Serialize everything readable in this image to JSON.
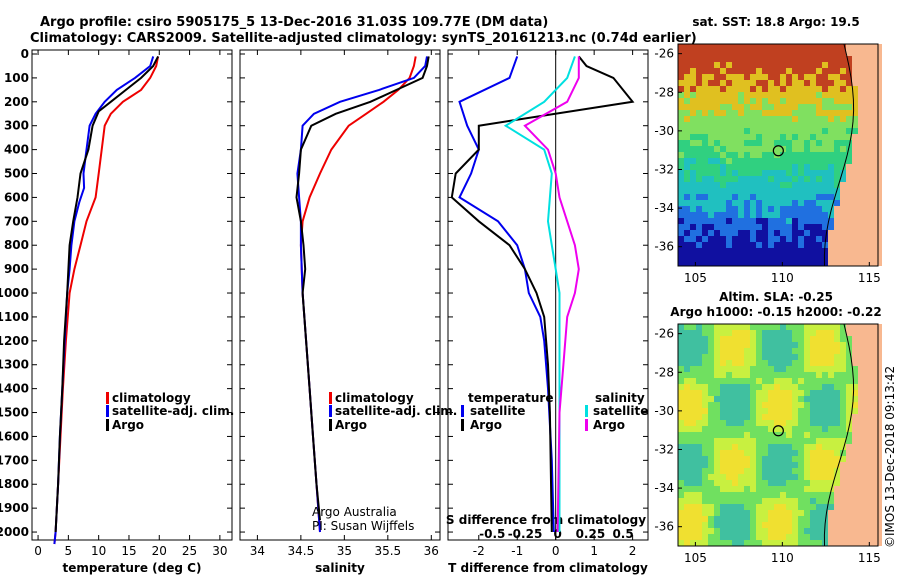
{
  "header": {
    "line1": "Argo profile: csiro 5905175_5 13-Dec-2016 31.03S 109.77E (DM data)",
    "line2": "Climatology: CARS2009. Satellite-adjusted climatology: synTS_20161213.nc (0.74d earlier)"
  },
  "colors": {
    "climatology": "#ee0000",
    "satellite": "#0000ee",
    "argo": "#000000",
    "sal_sat": "#00e0e0",
    "sal_argo": "#ee00ee"
  },
  "footer": {
    "credit1": "Argo Australia",
    "credit2": "PI: Susan Wijffels",
    "stamp": "©IMOS 13-Dec-2018 09:13:42"
  },
  "chart_data": [
    {
      "type": "line",
      "xlabel": "temperature (deg C)",
      "ylabel": "",
      "xlim": [
        -1,
        32
      ],
      "ylim": [
        2050,
        0
      ],
      "xticks": [
        "0",
        "5",
        "10",
        "15",
        "20",
        "25",
        "30"
      ],
      "yticks": [
        "0",
        "100",
        "200",
        "300",
        "400",
        "500",
        "600",
        "700",
        "800",
        "900",
        "1000",
        "1100",
        "1200",
        "1300",
        "1400",
        "1500",
        "1600",
        "1700",
        "1800",
        "1900",
        "2000"
      ],
      "legend": [
        "climatology",
        "satellite-adj. clim.",
        "Argo"
      ],
      "series": [
        {
          "name": "climatology",
          "points": [
            [
              19.8,
              10
            ],
            [
              19.5,
              50
            ],
            [
              18.5,
              100
            ],
            [
              17,
              150
            ],
            [
              14,
              200
            ],
            [
              12,
              250
            ],
            [
              11,
              300
            ],
            [
              10.5,
              400
            ],
            [
              10,
              500
            ],
            [
              9.5,
              600
            ],
            [
              8,
              700
            ],
            [
              7,
              800
            ],
            [
              6,
              900
            ],
            [
              5.2,
              1000
            ],
            [
              4.6,
              1200
            ],
            [
              4.1,
              1400
            ],
            [
              3.7,
              1600
            ],
            [
              3.3,
              1800
            ],
            [
              2.9,
              2000
            ],
            [
              2.7,
              2050
            ]
          ]
        },
        {
          "name": "satellite-adj. clim.",
          "points": [
            [
              19,
              10
            ],
            [
              18.5,
              50
            ],
            [
              16,
              100
            ],
            [
              13,
              150
            ],
            [
              11,
              200
            ],
            [
              9.5,
              250
            ],
            [
              8.5,
              300
            ],
            [
              8,
              400
            ],
            [
              7.5,
              500
            ],
            [
              7.6,
              560
            ],
            [
              6.8,
              620
            ],
            [
              6,
              700
            ],
            [
              5.5,
              800
            ],
            [
              5.2,
              900
            ],
            [
              4.8,
              1000
            ],
            [
              4.4,
              1200
            ],
            [
              4,
              1400
            ],
            [
              3.6,
              1600
            ],
            [
              3.3,
              1800
            ],
            [
              2.9,
              2000
            ],
            [
              2.7,
              2050
            ]
          ]
        },
        {
          "name": "Argo",
          "points": [
            [
              19.8,
              10
            ],
            [
              19,
              50
            ],
            [
              17,
              100
            ],
            [
              14.5,
              150
            ],
            [
              12,
              200
            ],
            [
              10,
              240
            ],
            [
              9,
              300
            ],
            [
              8.3,
              400
            ],
            [
              7,
              500
            ],
            [
              6.5,
              600
            ],
            [
              5.8,
              700
            ],
            [
              5.2,
              800
            ],
            [
              5,
              900
            ],
            [
              4.8,
              1000
            ],
            [
              4.3,
              1200
            ],
            [
              4,
              1400
            ],
            [
              3.6,
              1600
            ],
            [
              3.3,
              1800
            ],
            [
              2.9,
              2000
            ]
          ]
        }
      ]
    },
    {
      "type": "line",
      "xlabel": "salinity",
      "ylabel": "",
      "xlim": [
        33.8,
        36.1
      ],
      "ylim": [
        2050,
        0
      ],
      "xticks": [
        "34",
        "34.5",
        "35",
        "35.5",
        "36"
      ],
      "legend": [
        "climatology",
        "satellite-adj. clim.",
        "Argo"
      ],
      "series": [
        {
          "name": "climatology",
          "points": [
            [
              35.82,
              10
            ],
            [
              35.8,
              50
            ],
            [
              35.75,
              100
            ],
            [
              35.62,
              150
            ],
            [
              35.45,
              200
            ],
            [
              35.25,
              250
            ],
            [
              35.05,
              300
            ],
            [
              34.85,
              400
            ],
            [
              34.72,
              500
            ],
            [
              34.6,
              600
            ],
            [
              34.52,
              700
            ],
            [
              34.5,
              800
            ],
            [
              34.52,
              1000
            ],
            [
              34.56,
              1200
            ],
            [
              34.6,
              1400
            ],
            [
              34.64,
              1600
            ],
            [
              34.68,
              1800
            ],
            [
              34.72,
              2000
            ]
          ]
        },
        {
          "name": "satellite-adj. clim.",
          "points": [
            [
              35.95,
              10
            ],
            [
              35.93,
              50
            ],
            [
              35.8,
              100
            ],
            [
              35.4,
              150
            ],
            [
              34.95,
              200
            ],
            [
              34.65,
              250
            ],
            [
              34.52,
              300
            ],
            [
              34.5,
              400
            ],
            [
              34.46,
              500
            ],
            [
              34.48,
              600
            ],
            [
              34.5,
              700
            ],
            [
              34.5,
              800
            ],
            [
              34.52,
              1000
            ],
            [
              34.56,
              1200
            ],
            [
              34.6,
              1400
            ],
            [
              34.64,
              1600
            ],
            [
              34.68,
              1800
            ],
            [
              34.72,
              2000
            ]
          ]
        },
        {
          "name": "Argo",
          "points": [
            [
              35.97,
              10
            ],
            [
              35.95,
              50
            ],
            [
              35.9,
              100
            ],
            [
              35.6,
              150
            ],
            [
              35.3,
              200
            ],
            [
              34.9,
              250
            ],
            [
              34.62,
              300
            ],
            [
              34.5,
              400
            ],
            [
              34.48,
              500
            ],
            [
              34.45,
              600
            ],
            [
              34.5,
              700
            ],
            [
              34.53,
              800
            ],
            [
              34.55,
              900
            ],
            [
              34.52,
              1000
            ],
            [
              34.56,
              1200
            ],
            [
              34.6,
              1400
            ],
            [
              34.64,
              1600
            ],
            [
              34.68,
              1800
            ],
            [
              34.72,
              1950
            ]
          ]
        }
      ]
    },
    {
      "type": "line",
      "xlabel": "T difference from climatology",
      "ylabel": "",
      "xlim": [
        -2.8,
        2.4
      ],
      "ylim": [
        2050,
        0
      ],
      "xticks": [
        "-2",
        "-1",
        "0",
        "1",
        "2"
      ],
      "secondary_axis_label": "S difference from climatology",
      "secondary_xticks": [
        "-0.5",
        "-0.25",
        "0",
        "0.25",
        "0.5"
      ],
      "legend": [
        "temperature satellite",
        "temperature Argo",
        "salinity satellite",
        "salinity Argo"
      ],
      "series": [
        {
          "name": "temperature satellite",
          "points": [
            [
              -1,
              10
            ],
            [
              -1.2,
              100
            ],
            [
              -2.5,
              200
            ],
            [
              -2.3,
              300
            ],
            [
              -2,
              400
            ],
            [
              -2.2,
              500
            ],
            [
              -2.5,
              600
            ],
            [
              -1.5,
              700
            ],
            [
              -1,
              800
            ],
            [
              -0.8,
              900
            ],
            [
              -0.7,
              1000
            ],
            [
              -0.4,
              1100
            ],
            [
              -0.3,
              1200
            ],
            [
              -0.2,
              1400
            ],
            [
              -0.1,
              1700
            ],
            [
              -0.05,
              2000
            ]
          ]
        },
        {
          "name": "temperature Argo",
          "points": [
            [
              0.6,
              10
            ],
            [
              0.8,
              50
            ],
            [
              1.5,
              100
            ],
            [
              2,
              200
            ],
            [
              -2,
              300
            ],
            [
              -2,
              400
            ],
            [
              -2.6,
              500
            ],
            [
              -2.7,
              600
            ],
            [
              -2,
              700
            ],
            [
              -1.2,
              800
            ],
            [
              -0.8,
              900
            ],
            [
              -0.5,
              1000
            ],
            [
              -0.3,
              1100
            ],
            [
              -0.2,
              1300
            ],
            [
              -0.15,
              1500
            ],
            [
              -0.1,
              2000
            ]
          ]
        },
        {
          "name": "salinity satellite",
          "points": [
            [
              0.5,
              10
            ],
            [
              0.3,
              100
            ],
            [
              -0.3,
              200
            ],
            [
              -1.3,
              300
            ],
            [
              -0.3,
              400
            ],
            [
              -0.1,
              500
            ],
            [
              -0.15,
              600
            ],
            [
              -0.2,
              700
            ],
            [
              -0.1,
              800
            ],
            [
              0,
              900
            ],
            [
              0.1,
              1000
            ],
            [
              0.1,
              1200
            ],
            [
              0.1,
              1500
            ],
            [
              0.1,
              2000
            ]
          ]
        },
        {
          "name": "salinity Argo",
          "points": [
            [
              0.6,
              10
            ],
            [
              0.6,
              100
            ],
            [
              0.3,
              200
            ],
            [
              -0.8,
              300
            ],
            [
              -0.2,
              400
            ],
            [
              0,
              500
            ],
            [
              0.1,
              600
            ],
            [
              0.3,
              700
            ],
            [
              0.5,
              800
            ],
            [
              0.6,
              900
            ],
            [
              0.5,
              1000
            ],
            [
              0.3,
              1100
            ],
            [
              0.2,
              1300
            ],
            [
              0.1,
              1500
            ],
            [
              0.05,
              2000
            ]
          ]
        }
      ]
    },
    {
      "type": "heatmap",
      "title": "sat. SST: 18.8 Argo: 19.5",
      "xlim": [
        104,
        115.5
      ],
      "ylim": [
        -37,
        -25.5
      ],
      "xticks": [
        "105",
        "110",
        "115"
      ],
      "yticks": [
        "-26",
        "-28",
        "-30",
        "-32",
        "-34",
        "-36"
      ],
      "marker": {
        "lon": 109.77,
        "lat": -31.03
      }
    },
    {
      "type": "heatmap",
      "title": "Altim. SLA: -0.25",
      "subtitle": "Argo h1000: -0.15 h2000: -0.22",
      "xlim": [
        104,
        115.5
      ],
      "ylim": [
        -37,
        -25.5
      ],
      "xticks": [
        "105",
        "110",
        "115"
      ],
      "yticks": [
        "-26",
        "-28",
        "-30",
        "-32",
        "-34",
        "-36"
      ],
      "marker": {
        "lon": 109.77,
        "lat": -31.03
      }
    }
  ]
}
